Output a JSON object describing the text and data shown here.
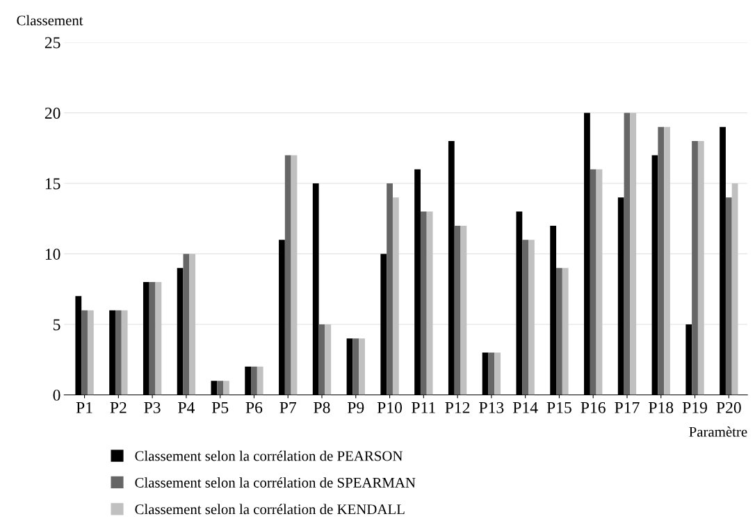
{
  "chart_data": {
    "type": "bar",
    "xlabel": "Paramètre",
    "ylabel": "Classement",
    "categories": [
      "P1",
      "P2",
      "P3",
      "P4",
      "P5",
      "P6",
      "P7",
      "P8",
      "P9",
      "P10",
      "P11",
      "P12",
      "P13",
      "P14",
      "P15",
      "P16",
      "P17",
      "P18",
      "P19",
      "P20"
    ],
    "series": [
      {
        "name": "Classement selon la corrélation de PEARSON",
        "color": "#000000",
        "values": [
          7,
          6,
          8,
          9,
          1,
          2,
          11,
          15,
          4,
          10,
          16,
          18,
          3,
          13,
          12,
          20,
          14,
          17,
          5,
          19
        ]
      },
      {
        "name": "Classement selon la corrélation de SPEARMAN",
        "color": "#666666",
        "values": [
          6,
          6,
          8,
          10,
          1,
          2,
          17,
          5,
          4,
          15,
          13,
          12,
          3,
          11,
          9,
          16,
          20,
          19,
          18,
          14
        ]
      },
      {
        "name": "Classement selon la corrélation de KENDALL",
        "color": "#c0c0c0",
        "values": [
          6,
          6,
          8,
          10,
          1,
          2,
          17,
          5,
          4,
          14,
          13,
          12,
          3,
          11,
          9,
          16,
          20,
          19,
          18,
          15
        ]
      }
    ],
    "ylim": [
      0,
      25
    ],
    "yticks": [
      0,
      5,
      10,
      15,
      20,
      25
    ],
    "grid": "y",
    "legend": "bottom left"
  }
}
